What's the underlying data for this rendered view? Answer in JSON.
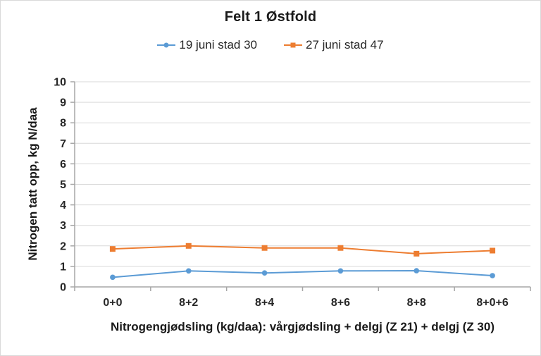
{
  "chart_data": {
    "type": "line",
    "title": "Felt 1 Østfold",
    "categories": [
      "0+0",
      "8+2",
      "8+4",
      "8+6",
      "8+8",
      "8+0+6"
    ],
    "series": [
      {
        "name": "19 juni stad 30",
        "color": "#5B9BD5",
        "marker": "circle",
        "values": [
          0.47,
          0.78,
          0.68,
          0.78,
          0.79,
          0.55
        ]
      },
      {
        "name": "27 juni stad 47",
        "color": "#ED7D31",
        "marker": "square",
        "values": [
          1.85,
          2.0,
          1.9,
          1.9,
          1.62,
          1.77
        ]
      }
    ],
    "xlabel": "Nitrogengjødsling (kg/daa): vårgjødsling + delgj (Z 21) + delgj (Z 30)",
    "ylabel": "Nitrogen tatt opp, kg N/daa",
    "ylim": [
      0,
      10
    ],
    "ytick_step": 1,
    "legend_position": "top",
    "grid": true,
    "grid_color": "#D9D9D9",
    "axis_color": "#A6A6A6",
    "text_color": "#262626"
  }
}
